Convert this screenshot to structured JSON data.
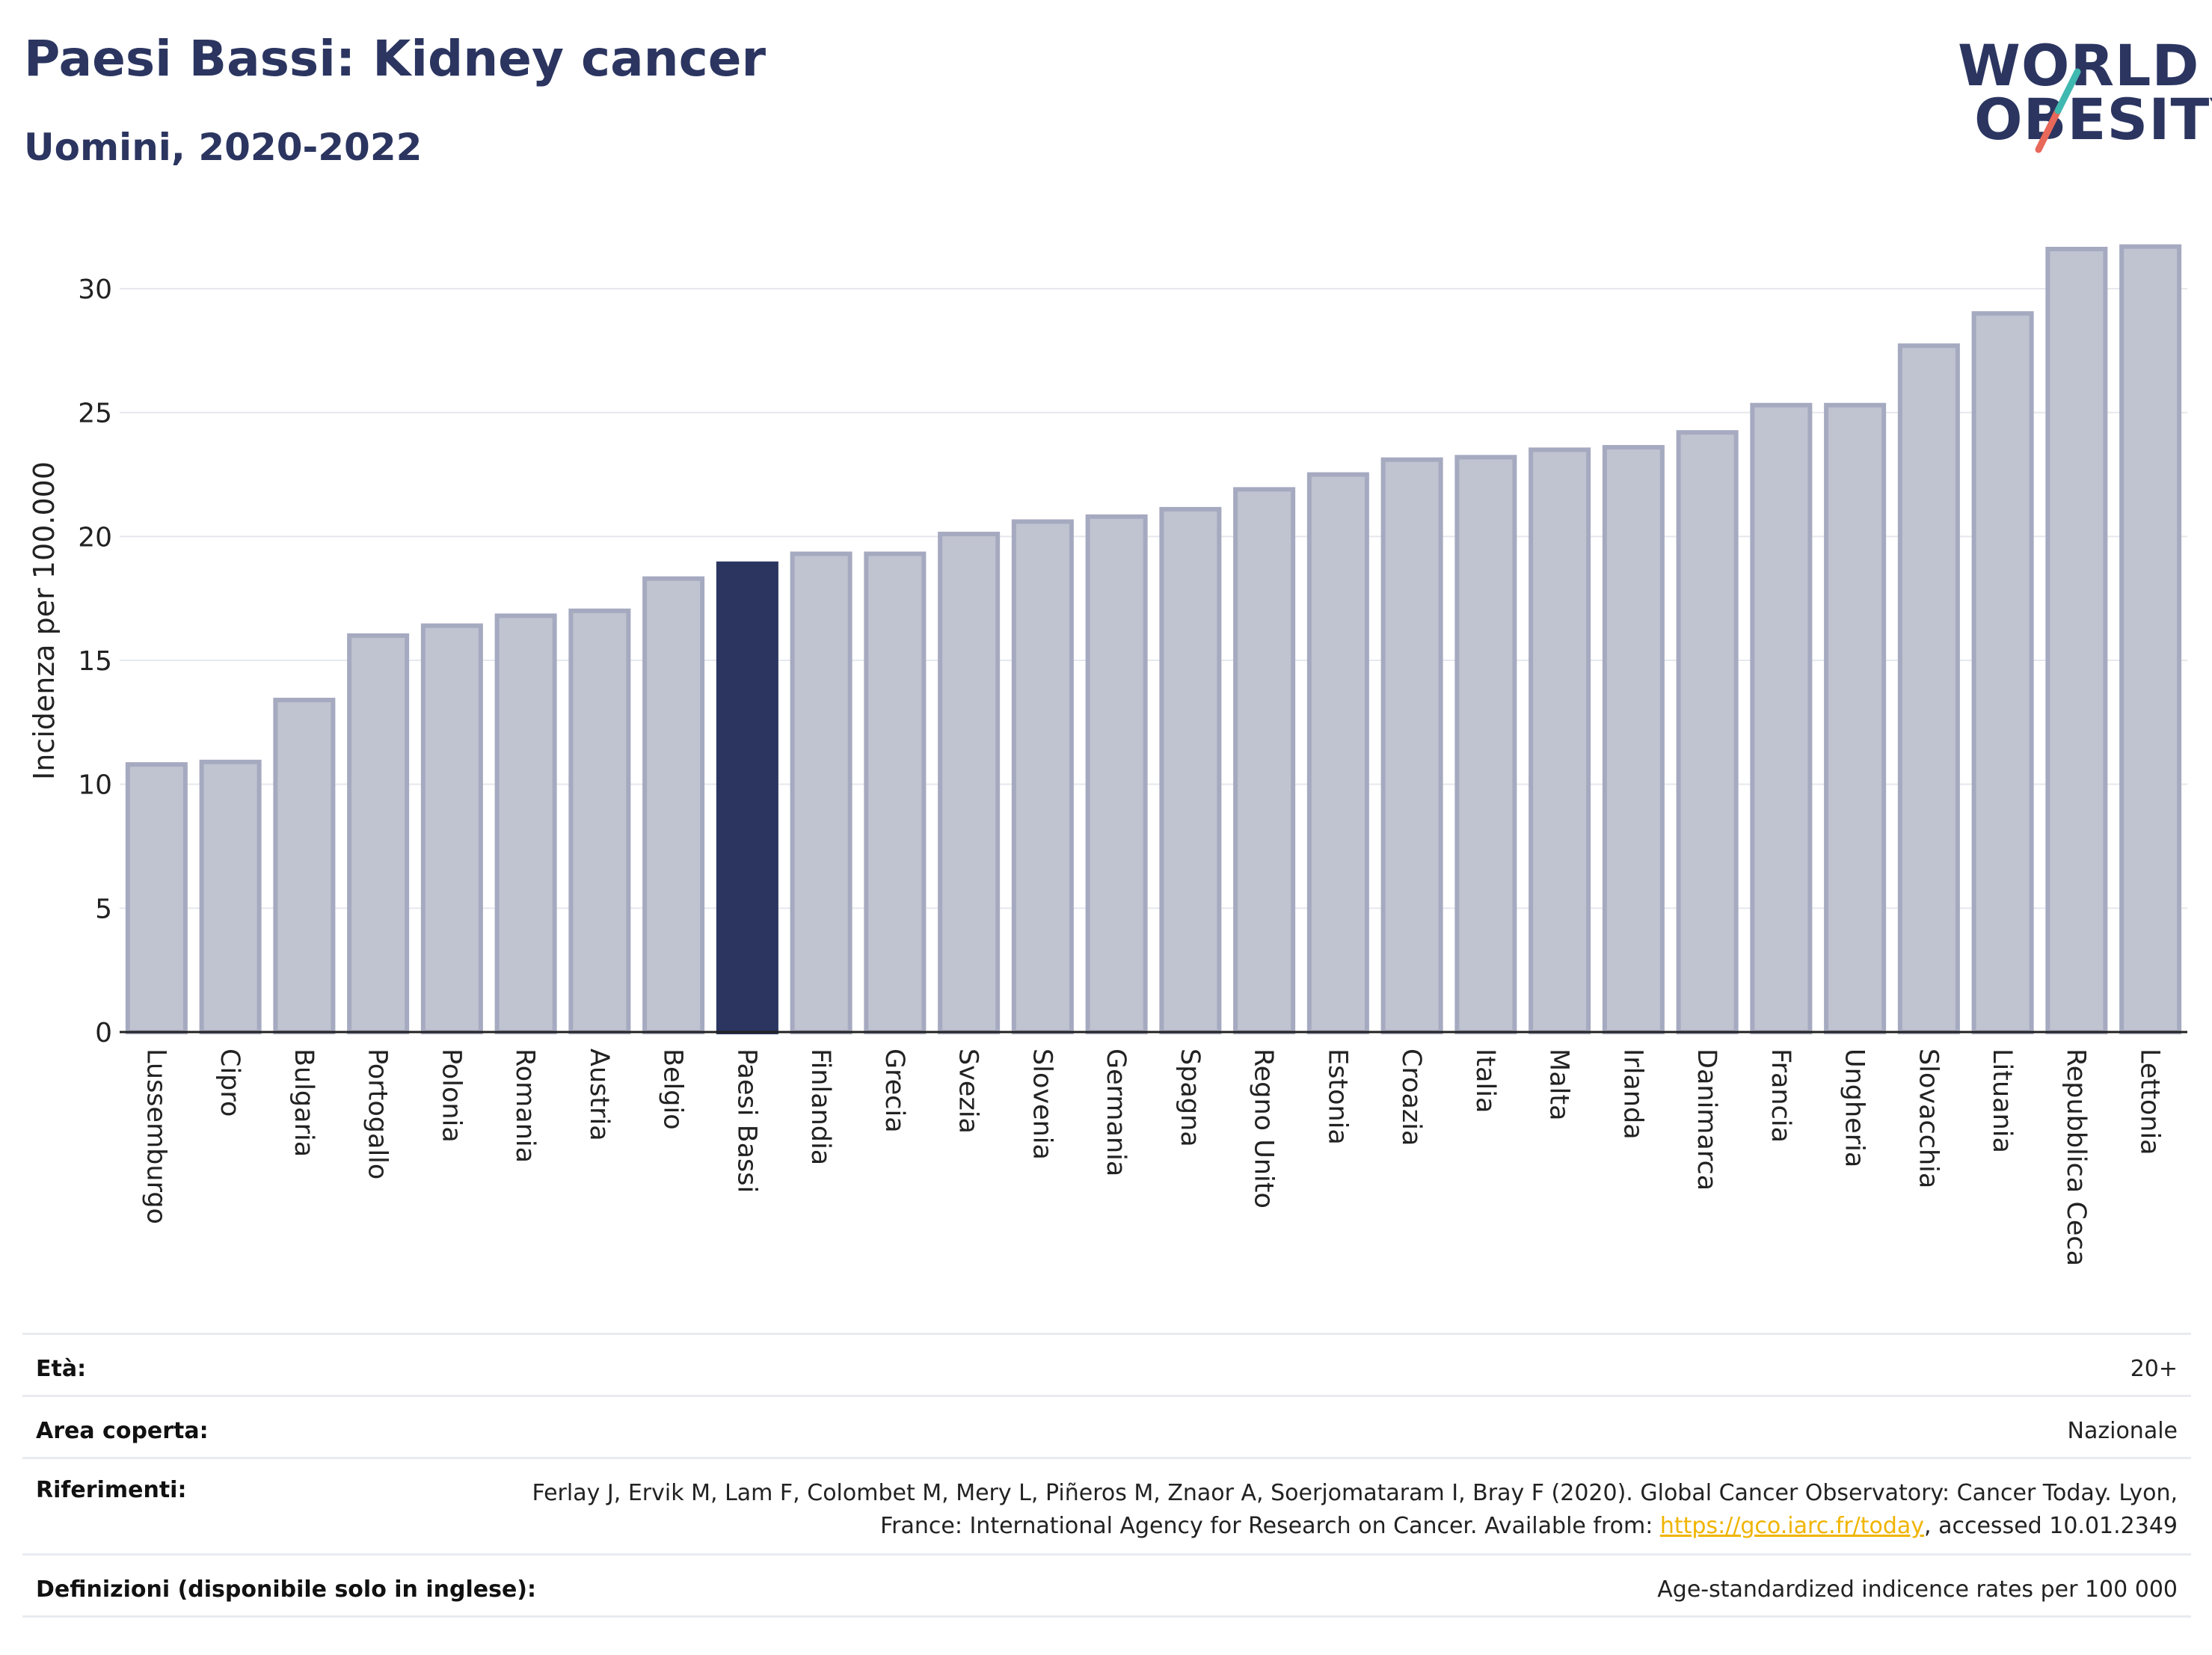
{
  "header": {
    "title": "Paesi Bassi: Kidney cancer",
    "subtitle": "Uomini, 2020-2022"
  },
  "logo": {
    "line1": "WORLD",
    "line2": "OBESITY"
  },
  "colors": {
    "bar": "#c0c3d0",
    "bar_edge": "#a6aac0",
    "highlight": "#2b3560",
    "grid": "#e6e8ee",
    "axis": "#222222"
  },
  "chart_data": {
    "type": "bar",
    "title": "",
    "xlabel": "",
    "ylabel": "Incidenza per 100.000",
    "ylim": [
      0,
      32
    ],
    "yticks": [
      0,
      5,
      10,
      15,
      20,
      25,
      30
    ],
    "grid": true,
    "highlight": "Paesi Bassi",
    "categories": [
      "Lussemburgo",
      "Cipro",
      "Bulgaria",
      "Portogallo",
      "Polonia",
      "Romania",
      "Austria",
      "Belgio",
      "Paesi Bassi",
      "Finlandia",
      "Grecia",
      "Svezia",
      "Slovenia",
      "Germania",
      "Spagna",
      "Regno Unito",
      "Estonia",
      "Croazia",
      "Italia",
      "Malta",
      "Irlanda",
      "Danimarca",
      "Francia",
      "Ungheria",
      "Slovacchia",
      "Lituania",
      "Repubblica Ceca",
      "Lettonia"
    ],
    "values": [
      10.8,
      10.9,
      13.4,
      16.0,
      16.4,
      16.8,
      17.0,
      18.3,
      18.9,
      19.3,
      19.3,
      20.1,
      20.6,
      20.8,
      21.1,
      21.9,
      22.5,
      23.1,
      23.2,
      23.5,
      23.6,
      24.2,
      25.3,
      25.3,
      27.7,
      29.0,
      31.6,
      31.7
    ]
  },
  "footer": {
    "rows": [
      {
        "label": "Età:",
        "value": "20+"
      },
      {
        "label": "Area coperta:",
        "value": "Nazionale"
      },
      {
        "label": "Riferimenti:",
        "value_before": "Ferlay J, Ervik M, Lam F, Colombet M, Mery L, Piñeros M, Znaor A, Soerjomataram I, Bray F (2020). Global Cancer Observatory: Cancer Today. Lyon, France: International Agency for Research on Cancer. Available from: ",
        "link": "https://gco.iarc.fr/today",
        "value_after": ", accessed 10.01.2349"
      },
      {
        "label": "Definizioni (disponibile solo in inglese):",
        "value": "Age-standardized indicence rates per 100 000"
      }
    ]
  }
}
